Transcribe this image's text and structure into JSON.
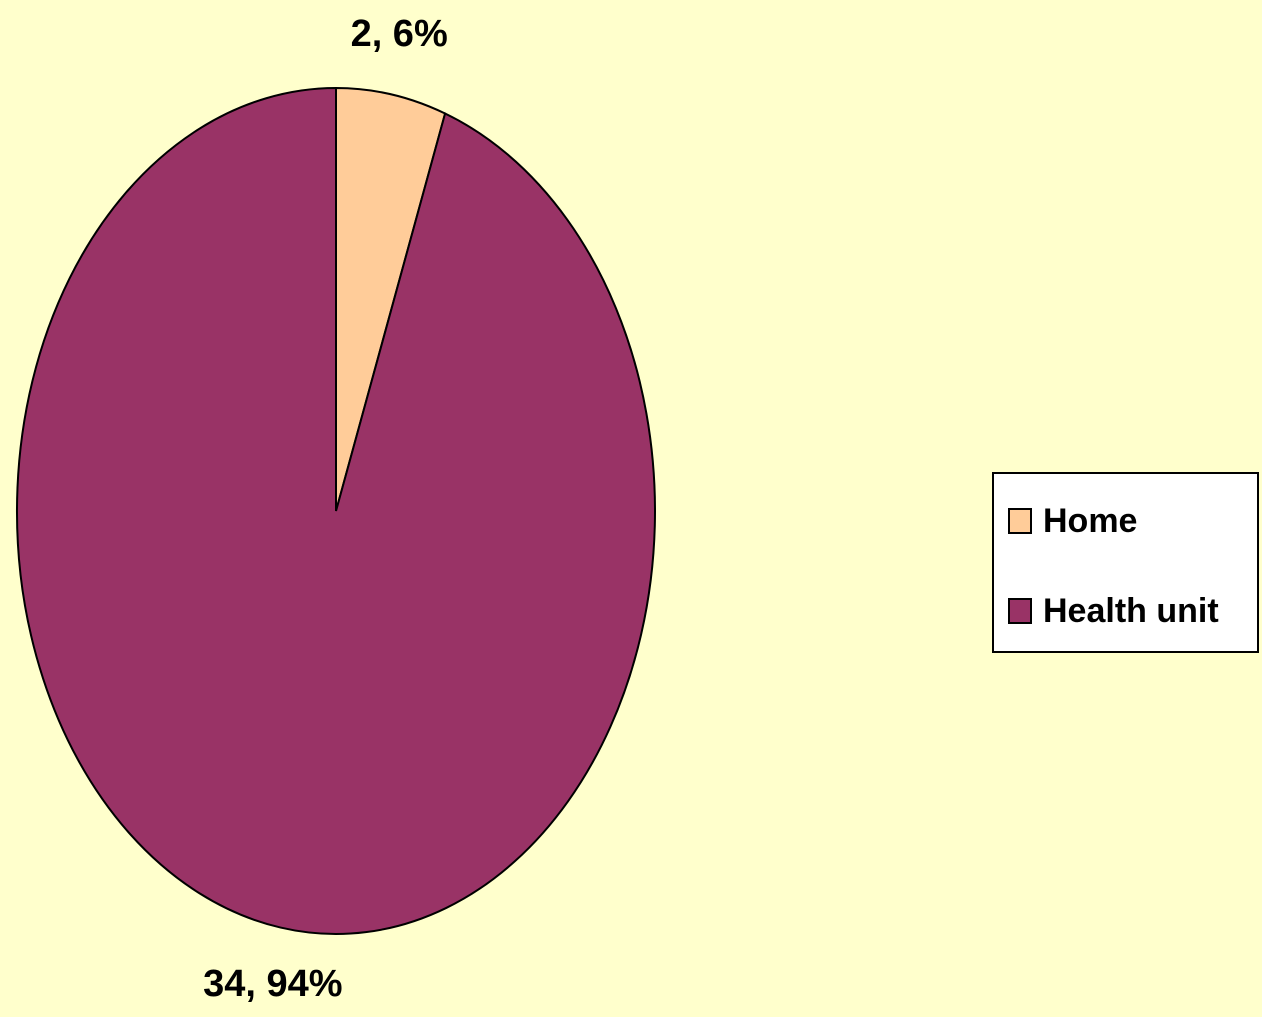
{
  "chart_data": {
    "type": "pie",
    "categories": [
      "Home",
      "Health unit"
    ],
    "values": [
      2,
      34
    ],
    "value_labels": [
      "2, 6%",
      "34, 94%"
    ],
    "colors": [
      "#ffcc99",
      "#993366"
    ],
    "legend": "right"
  }
}
